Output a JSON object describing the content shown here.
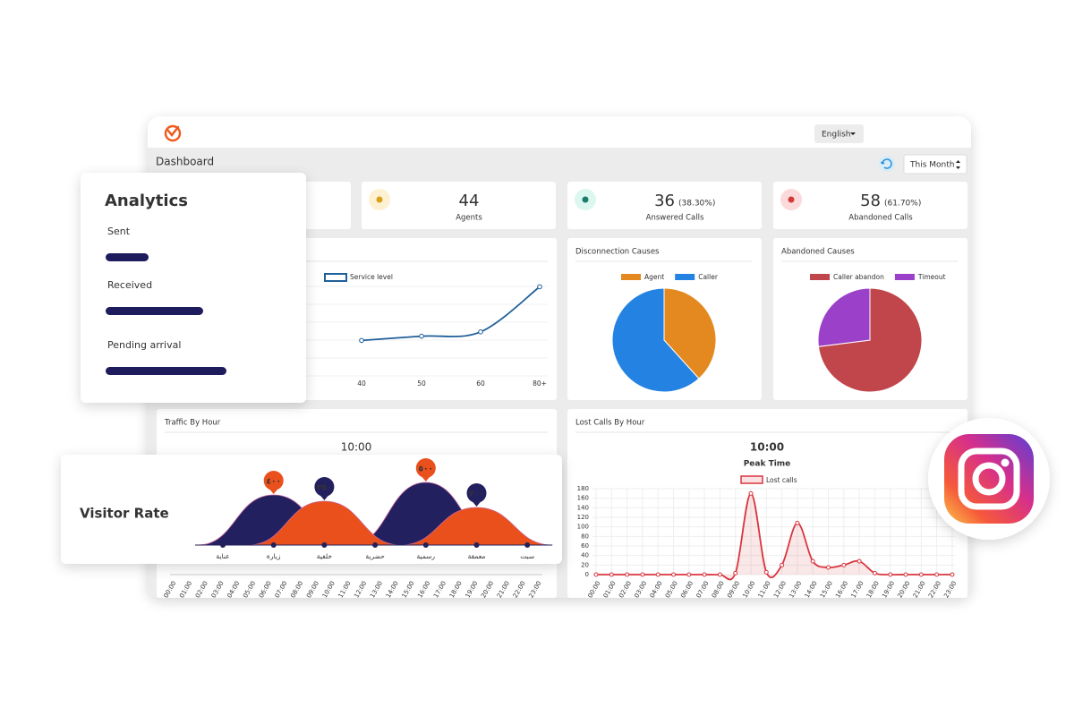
{
  "header": {
    "language": "English",
    "title": "Dashboard",
    "period": "This Month"
  },
  "stats": [
    {
      "value": 44,
      "label": "Agents"
    },
    {
      "value": 36,
      "percent": "(38.30%)",
      "label": "Answered Calls"
    },
    {
      "value": 58,
      "percent": "(61.70%)",
      "label": "Abandoned Calls"
    }
  ],
  "chart_data": [
    {
      "type": "line",
      "categories": [
        "40",
        "50",
        "60",
        "80+"
      ],
      "series": [
        {
          "name": "Service level",
          "color": "#1f5f99",
          "values": [
            33,
            37,
            41,
            83
          ]
        }
      ],
      "ylim": [
        0,
        100
      ]
    },
    {
      "type": "pie",
      "title": "Disconnection Causes",
      "categories": [
        "Agent",
        "Caller"
      ],
      "values": [
        36,
        58
      ],
      "colors": [
        "#e3891f",
        "#2482e2"
      ]
    },
    {
      "type": "pie",
      "title": "Abandoned Causes",
      "categories": [
        "Caller abandon",
        "Timeout"
      ],
      "values": [
        73,
        27
      ],
      "colors": [
        "#c0464b",
        "#9a40c9"
      ]
    },
    {
      "type": "line",
      "title": "Traffic By Hour",
      "annotation": "10:00",
      "categories": [
        "00:00",
        "01:00",
        "02:00",
        "03:00",
        "04:00",
        "05:00",
        "06:00",
        "07:00",
        "08:00",
        "09:00",
        "10:00",
        "11:00",
        "12:00",
        "13:00",
        "14:00",
        "15:00",
        "16:00",
        "17:00",
        "18:00",
        "19:00",
        "20:00",
        "21:00",
        "22:00",
        "23:00"
      ]
    },
    {
      "type": "line",
      "title": "Lost Calls By Hour",
      "annotation": "10:00",
      "subtitle": "Peak Time",
      "categories": [
        "00:00",
        "01:00",
        "02:00",
        "03:00",
        "04:00",
        "05:00",
        "06:00",
        "07:00",
        "08:00",
        "09:00",
        "10:00",
        "11:00",
        "12:00",
        "13:00",
        "14:00",
        "15:00",
        "16:00",
        "17:00",
        "18:00",
        "19:00",
        "20:00",
        "21:00",
        "22:00",
        "23:00"
      ],
      "series": [
        {
          "name": "Lost calls",
          "color": "#d9363e",
          "values": [
            0,
            0,
            0,
            0,
            0,
            0,
            0,
            0,
            0,
            3,
            170,
            5,
            20,
            108,
            28,
            15,
            20,
            28,
            3,
            0,
            0,
            0,
            0,
            0
          ]
        }
      ],
      "ylim": [
        0,
        180
      ],
      "yticks": [
        0,
        20,
        40,
        60,
        80,
        100,
        120,
        140,
        160,
        180
      ],
      "grid": true
    },
    {
      "type": "bar",
      "title": "Analytics",
      "categories": [
        "Sent",
        "Received",
        "Pending arrival"
      ],
      "values": [
        48,
        109,
        135
      ],
      "color": "#1e1c5c",
      "xlim": [
        0,
        140
      ]
    },
    {
      "type": "area",
      "title": "Visitor Rate",
      "categories": [
        "عناية",
        "زيارة",
        "خلفية",
        "حضرية",
        "رسمية",
        "معمقة",
        "سبت"
      ],
      "series": [
        {
          "color": "#e9501c",
          "values": [
            null,
            400,
            null,
            null,
            500,
            null,
            null
          ],
          "value_labels": [
            null,
            "٤٠٠",
            null,
            null,
            "٥٠٠",
            null,
            null
          ]
        },
        {
          "color": "#232060",
          "values": [
            null,
            null,
            350,
            null,
            null,
            300,
            null
          ],
          "value_labels": [
            null,
            null,
            "٣٥٠",
            null,
            null,
            "٣٠٠",
            null
          ]
        }
      ]
    }
  ]
}
